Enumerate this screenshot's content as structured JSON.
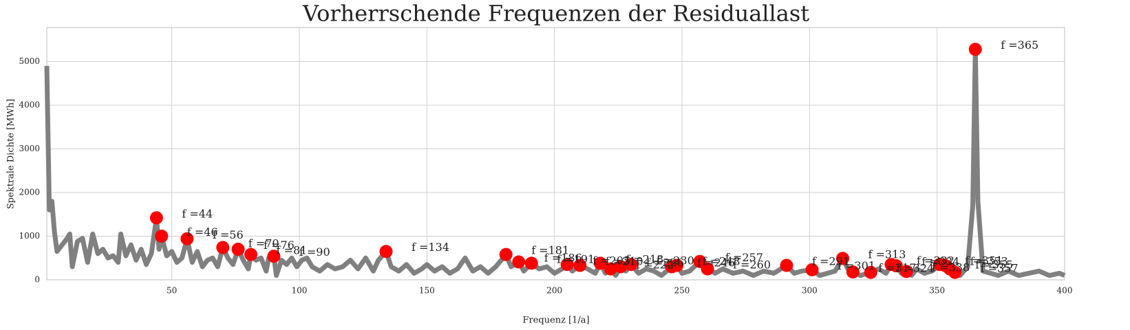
{
  "chart_data": {
    "type": "line",
    "title": "Vorherrschende Frequenzen der Residuallast",
    "x_label": "Frequenz [1/a]",
    "y_label": "Spektrale Dichte [MWh]",
    "xlim": [
      1,
      400
    ],
    "xticks": [
      50,
      100,
      150,
      200,
      250,
      300,
      350,
      400
    ],
    "ylim": [
      0,
      5780
    ],
    "yticks": [
      0,
      1000,
      2000,
      3000,
      4000,
      5000
    ],
    "grid": true,
    "line": {
      "color": "#808080",
      "x": [
        1,
        2,
        3,
        4,
        5,
        7,
        9,
        10,
        11,
        13,
        15,
        17,
        19,
        21,
        23,
        25,
        27,
        29,
        30,
        32,
        34,
        36,
        38,
        40,
        42,
        44,
        45,
        46,
        48,
        50,
        52,
        54,
        56,
        58,
        60,
        62,
        64,
        66,
        68,
        70,
        72,
        74,
        76,
        78,
        80,
        81,
        83,
        85,
        87,
        88,
        90,
        91,
        93,
        95,
        97,
        99,
        101,
        103,
        105,
        108,
        111,
        114,
        117,
        120,
        123,
        126,
        129,
        131,
        134,
        136,
        139,
        142,
        145,
        148,
        150,
        153,
        156,
        159,
        162,
        165,
        168,
        171,
        174,
        177,
        181,
        183,
        186,
        188,
        191,
        194,
        197,
        200,
        203,
        205,
        207,
        210,
        213,
        216,
        218,
        220,
        222,
        224,
        226,
        228,
        230,
        233,
        236,
        239,
        242,
        246,
        248,
        250,
        253,
        257,
        260,
        263,
        266,
        270,
        274,
        278,
        282,
        286,
        291,
        294,
        297,
        301,
        304,
        307,
        310,
        313,
        315,
        317,
        320,
        324,
        327,
        330,
        332,
        334,
        336,
        338,
        340,
        342,
        345,
        348,
        351,
        353,
        355,
        357,
        359,
        362,
        364,
        365,
        366,
        368,
        371,
        374,
        378,
        382,
        386,
        390,
        394,
        398,
        400
      ],
      "values": [
        4900,
        1600,
        1800,
        1100,
        650,
        800,
        950,
        1050,
        300,
        880,
        950,
        400,
        1050,
        600,
        700,
        500,
        550,
        400,
        1050,
        550,
        800,
        450,
        700,
        350,
        600,
        1420,
        700,
        1000,
        550,
        650,
        400,
        500,
        940,
        400,
        650,
        300,
        450,
        500,
        300,
        740,
        500,
        350,
        700,
        450,
        250,
        580,
        450,
        500,
        200,
        500,
        540,
        100,
        450,
        350,
        500,
        300,
        450,
        500,
        300,
        200,
        350,
        250,
        300,
        450,
        250,
        500,
        200,
        450,
        650,
        300,
        200,
        350,
        150,
        250,
        350,
        200,
        300,
        150,
        250,
        500,
        200,
        300,
        150,
        300,
        580,
        300,
        410,
        200,
        380,
        250,
        300,
        150,
        250,
        350,
        200,
        330,
        250,
        150,
        380,
        150,
        250,
        100,
        300,
        200,
        350,
        150,
        250,
        200,
        100,
        300,
        330,
        150,
        200,
        420,
        250,
        150,
        250,
        150,
        200,
        100,
        200,
        150,
        330,
        150,
        200,
        230,
        100,
        150,
        200,
        490,
        250,
        180,
        100,
        170,
        250,
        150,
        350,
        320,
        150,
        190,
        100,
        250,
        150,
        200,
        350,
        330,
        250,
        170,
        100,
        300,
        1700,
        5280,
        1800,
        200,
        150,
        100,
        200,
        100,
        150,
        200,
        100,
        150,
        100
      ]
    },
    "peaks": {
      "color": "#ff0000",
      "x": [
        44,
        46,
        56,
        70,
        76,
        81,
        90,
        134,
        181,
        186,
        191,
        205,
        210,
        218,
        222,
        226,
        230,
        246,
        248,
        257,
        260,
        291,
        301,
        313,
        317,
        324,
        332,
        334,
        338,
        351,
        353,
        355,
        357,
        365
      ],
      "values": [
        1420,
        1000,
        940,
        740,
        700,
        580,
        540,
        650,
        580,
        410,
        380,
        350,
        330,
        380,
        250,
        300,
        350,
        300,
        330,
        420,
        250,
        330,
        230,
        490,
        180,
        170,
        350,
        320,
        190,
        350,
        330,
        250,
        170,
        5280
      ],
      "labels": [
        "f =44",
        "f =46",
        "f =56",
        "f =70",
        "f =76",
        "f =81",
        "f =90",
        "f =134",
        "f =181",
        "f =186",
        "f =191",
        "f =205",
        "f =210",
        "f =218",
        "f =222",
        "f =226",
        "f =230",
        "f =246",
        "f =248",
        "f =257",
        "f =260",
        "f =291",
        "f =301",
        "f =313",
        "f =317",
        "f =324",
        "f =332",
        "f =334",
        "f =338",
        "f =351",
        "f =353",
        "f =355",
        "f =357",
        "f =365"
      ]
    }
  }
}
